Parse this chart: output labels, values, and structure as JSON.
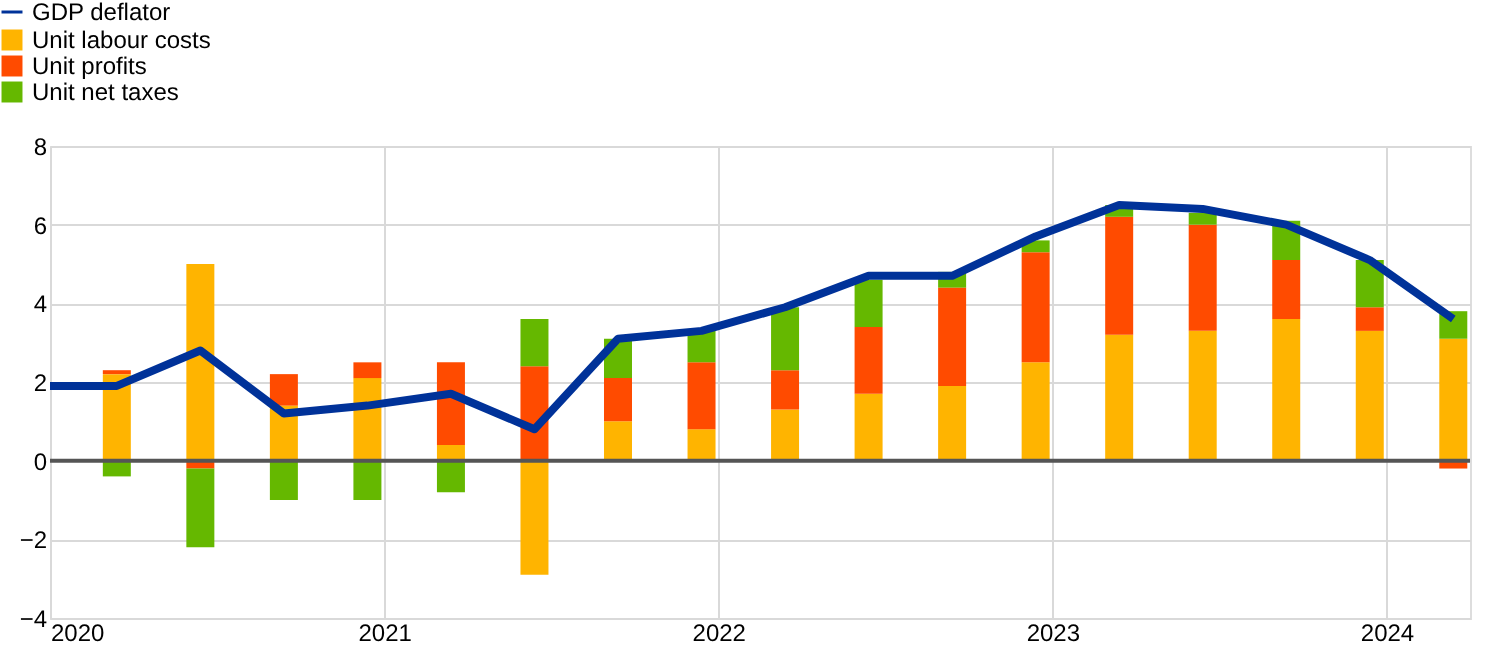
{
  "chart_data": {
    "type": "bar",
    "stacked": true,
    "x": [
      2020.2,
      2020.45,
      2020.7,
      2020.95,
      2021.2,
      2021.45,
      2021.7,
      2021.95,
      2022.2,
      2022.45,
      2022.7,
      2022.95,
      2023.2,
      2023.45,
      2023.7,
      2023.95,
      2024.2
    ],
    "series": [
      {
        "name": "GDP deflator",
        "type": "line",
        "color": "#003299",
        "x": [
          2020.0,
          2020.2,
          2020.45,
          2020.7,
          2020.95,
          2021.2,
          2021.45,
          2021.7,
          2021.95,
          2022.2,
          2022.45,
          2022.7,
          2022.95,
          2023.2,
          2023.45,
          2023.7,
          2023.95,
          2024.2
        ],
        "values": [
          1.9,
          1.9,
          2.8,
          1.2,
          1.4,
          1.7,
          0.8,
          3.1,
          3.3,
          3.9,
          4.7,
          4.7,
          5.7,
          6.5,
          6.4,
          6.0,
          5.1,
          3.6
        ]
      },
      {
        "name": "Unit labour costs",
        "color": "#ffb400",
        "values": [
          2.2,
          5.0,
          1.4,
          2.1,
          0.4,
          -2.9,
          1.0,
          0.8,
          1.3,
          1.7,
          1.9,
          2.5,
          3.2,
          3.3,
          3.6,
          3.3,
          3.1
        ]
      },
      {
        "name": "Unit profits",
        "color": "#ff4b00",
        "values": [
          0.1,
          -0.2,
          0.8,
          0.4,
          2.1,
          2.4,
          1.1,
          1.7,
          1.0,
          1.7,
          2.5,
          2.8,
          3.0,
          2.7,
          1.5,
          0.6,
          -0.2
        ]
      },
      {
        "name": "Unit net taxes",
        "color": "#65b800",
        "values": [
          -0.4,
          -2.0,
          -1.0,
          -1.0,
          -0.8,
          1.2,
          1.0,
          0.8,
          1.6,
          1.2,
          0.4,
          0.3,
          0.3,
          0.3,
          1.0,
          1.2,
          0.7
        ]
      }
    ],
    "xlim": [
      2020,
      2024.25
    ],
    "xticks": [
      2020,
      2021,
      2022,
      2023,
      2024
    ],
    "ylim": [
      -4,
      8
    ],
    "yticks": [
      -4,
      -2,
      0,
      2,
      4,
      6,
      8
    ],
    "ref_lines": [
      {
        "axis": "y",
        "value": 0,
        "color": "#555555"
      }
    ],
    "grid": true,
    "legend": "top left"
  }
}
